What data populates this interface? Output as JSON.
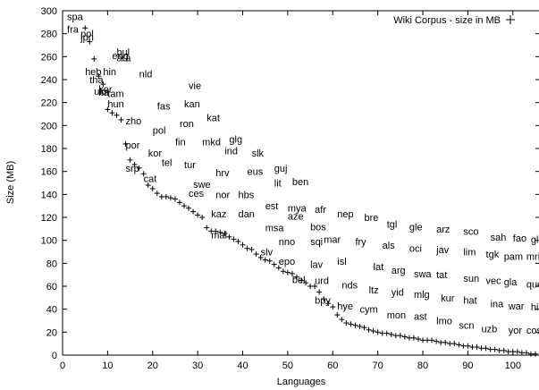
{
  "chart_data": {
    "type": "scatter",
    "xlabel": "Languages",
    "ylabel": "Size (MB)",
    "xlim": [
      0,
      106
    ],
    "ylim": [
      0,
      300
    ],
    "xticks": [
      0,
      10,
      20,
      30,
      40,
      50,
      60,
      70,
      80,
      90,
      100
    ],
    "yticks": [
      0,
      20,
      40,
      60,
      80,
      100,
      120,
      140,
      160,
      180,
      200,
      220,
      240,
      260,
      280,
      300
    ],
    "legend": {
      "label": "Wiki Corpus - size in MB",
      "position": "top-right"
    },
    "series": [
      {
        "name": "Wiki Corpus - size in MB",
        "marker": "plus",
        "x": [
          5,
          6,
          7,
          8,
          9,
          10,
          11,
          12,
          13,
          14,
          15,
          16,
          17,
          18,
          19,
          20,
          21,
          22,
          23,
          24,
          25,
          26,
          27,
          28,
          29,
          30,
          31,
          32,
          33,
          34,
          35,
          36,
          37,
          38,
          39,
          40,
          41,
          42,
          43,
          44,
          45,
          46,
          47,
          48,
          49,
          50,
          51,
          52,
          53,
          54,
          55,
          56,
          57,
          58,
          59,
          60,
          61,
          62,
          63,
          64,
          65,
          66,
          67,
          68,
          69,
          70,
          71,
          72,
          73,
          74,
          75,
          76,
          77,
          78,
          79,
          80,
          81,
          82,
          83,
          84,
          85,
          86,
          87,
          88,
          89,
          90,
          91,
          92,
          93,
          94,
          95,
          96,
          97,
          98,
          99,
          100,
          101,
          102,
          103,
          104,
          105
        ],
        "y": [
          285,
          273,
          258,
          243,
          236,
          214,
          211,
          209,
          205,
          184,
          170,
          166,
          163,
          158,
          148,
          145,
          141,
          138,
          138,
          137,
          136,
          133,
          130,
          128,
          125,
          122,
          120,
          111,
          108,
          108,
          107,
          106,
          103,
          101,
          99,
          96,
          93,
          92,
          88,
          85,
          83,
          82,
          79,
          76,
          73,
          72,
          71,
          68,
          65,
          63,
          60,
          60,
          55,
          49,
          45,
          42,
          35,
          31,
          28,
          27,
          26,
          25,
          24,
          22,
          21,
          20,
          19,
          19,
          18,
          17,
          17,
          16,
          15,
          15,
          14,
          13,
          13,
          13,
          12,
          11,
          11,
          10,
          10,
          9,
          8,
          8,
          7,
          7,
          6,
          6,
          5,
          5,
          4,
          4,
          3,
          3,
          3,
          2,
          2,
          1,
          1
        ]
      }
    ],
    "annotations": [
      {
        "text": "spa",
        "x": 1,
        "y": 295
      },
      {
        "text": "fra",
        "x": 1,
        "y": 284
      },
      {
        "text": "jpn",
        "x": 4,
        "y": 277
      },
      {
        "text": "pol",
        "x": 4,
        "y": 280
      },
      {
        "text": "bul",
        "x": 12,
        "y": 264
      },
      {
        "text": "eng",
        "x": 11,
        "y": 261
      },
      {
        "text": "ara",
        "x": 12,
        "y": 259
      },
      {
        "text": "nld",
        "x": 17,
        "y": 245
      },
      {
        "text": "heb",
        "x": 5,
        "y": 247
      },
      {
        "text": "hin",
        "x": 9,
        "y": 247
      },
      {
        "text": "tha",
        "x": 6,
        "y": 240
      },
      {
        "text": "vie",
        "x": 28,
        "y": 235
      },
      {
        "text": "ukr",
        "x": 7,
        "y": 230
      },
      {
        "text": "kor",
        "x": 8,
        "y": 232
      },
      {
        "text": "ita",
        "x": 8,
        "y": 229
      },
      {
        "text": "tam",
        "x": 10,
        "y": 228
      },
      {
        "text": "hun",
        "x": 10,
        "y": 219
      },
      {
        "text": "fas",
        "x": 21,
        "y": 217
      },
      {
        "text": "kan",
        "x": 27,
        "y": 219
      },
      {
        "text": "kat",
        "x": 32,
        "y": 207
      },
      {
        "text": "zho",
        "x": 14,
        "y": 204
      },
      {
        "text": "ron",
        "x": 26,
        "y": 202
      },
      {
        "text": "pol",
        "x": 20,
        "y": 196
      },
      {
        "text": "fin",
        "x": 25,
        "y": 186
      },
      {
        "text": "mkd",
        "x": 31,
        "y": 186
      },
      {
        "text": "glg",
        "x": 37,
        "y": 188
      },
      {
        "text": "por",
        "x": 14,
        "y": 183
      },
      {
        "text": "kor",
        "x": 19,
        "y": 176
      },
      {
        "text": "ind",
        "x": 36,
        "y": 178
      },
      {
        "text": "slk",
        "x": 42,
        "y": 176
      },
      {
        "text": "tel",
        "x": 22,
        "y": 168
      },
      {
        "text": "tur",
        "x": 27,
        "y": 166
      },
      {
        "text": "srp",
        "x": 14,
        "y": 163
      },
      {
        "text": "guj",
        "x": 47,
        "y": 163
      },
      {
        "text": "hrv",
        "x": 34,
        "y": 159
      },
      {
        "text": "eus",
        "x": 41,
        "y": 160
      },
      {
        "text": "cat",
        "x": 18,
        "y": 154
      },
      {
        "text": "ben",
        "x": 51,
        "y": 151
      },
      {
        "text": "lit",
        "x": 47,
        "y": 150
      },
      {
        "text": "swe",
        "x": 29,
        "y": 149
      },
      {
        "text": "hbs",
        "x": 39,
        "y": 140
      },
      {
        "text": "ces",
        "x": 28,
        "y": 141
      },
      {
        "text": "nor",
        "x": 34,
        "y": 140
      },
      {
        "text": "est",
        "x": 45,
        "y": 130
      },
      {
        "text": "mya",
        "x": 50,
        "y": 128
      },
      {
        "text": "afr",
        "x": 56,
        "y": 127
      },
      {
        "text": "kaz",
        "x": 33,
        "y": 123
      },
      {
        "text": "dan",
        "x": 39,
        "y": 123
      },
      {
        "text": "aze",
        "x": 50,
        "y": 121
      },
      {
        "text": "nep",
        "x": 61,
        "y": 123
      },
      {
        "text": "bre",
        "x": 67,
        "y": 120
      },
      {
        "text": "msa",
        "x": 45,
        "y": 111
      },
      {
        "text": "bos",
        "x": 55,
        "y": 112
      },
      {
        "text": "tgl",
        "x": 72,
        "y": 114
      },
      {
        "text": "gle",
        "x": 77,
        "y": 112
      },
      {
        "text": "arz",
        "x": 83,
        "y": 110
      },
      {
        "text": "sco",
        "x": 89,
        "y": 108
      },
      {
        "text": "mal",
        "x": 33,
        "y": 105
      },
      {
        "text": "mar",
        "x": 58,
        "y": 101
      },
      {
        "text": "sah",
        "x": 95,
        "y": 103
      },
      {
        "text": "fao",
        "x": 100,
        "y": 102
      },
      {
        "text": "glk",
        "x": 104,
        "y": 101
      },
      {
        "text": "nno",
        "x": 48,
        "y": 99
      },
      {
        "text": "sqi",
        "x": 55,
        "y": 99
      },
      {
        "text": "fry",
        "x": 65,
        "y": 99
      },
      {
        "text": "als",
        "x": 71,
        "y": 96
      },
      {
        "text": "oci",
        "x": 77,
        "y": 93
      },
      {
        "text": "jav",
        "x": 83,
        "y": 92
      },
      {
        "text": "lim",
        "x": 89,
        "y": 90
      },
      {
        "text": "slv",
        "x": 44,
        "y": 90
      },
      {
        "text": "tgk",
        "x": 94,
        "y": 88
      },
      {
        "text": "pam",
        "x": 98,
        "y": 86
      },
      {
        "text": "mri",
        "x": 103,
        "y": 86
      },
      {
        "text": "epo",
        "x": 48,
        "y": 82
      },
      {
        "text": "isl",
        "x": 61,
        "y": 82
      },
      {
        "text": "lav",
        "x": 55,
        "y": 79
      },
      {
        "text": "lat",
        "x": 69,
        "y": 77
      },
      {
        "text": "arg",
        "x": 73,
        "y": 74
      },
      {
        "text": "swa",
        "x": 78,
        "y": 71
      },
      {
        "text": "tat",
        "x": 83,
        "y": 70
      },
      {
        "text": "sun",
        "x": 89,
        "y": 67
      },
      {
        "text": "vec",
        "x": 94,
        "y": 65
      },
      {
        "text": "gla",
        "x": 98,
        "y": 64
      },
      {
        "text": "que",
        "x": 103,
        "y": 62
      },
      {
        "text": "bel",
        "x": 51,
        "y": 66
      },
      {
        "text": "urd",
        "x": 56,
        "y": 65
      },
      {
        "text": "nds",
        "x": 62,
        "y": 61
      },
      {
        "text": "ltz",
        "x": 68,
        "y": 57
      },
      {
        "text": "yid",
        "x": 73,
        "y": 55
      },
      {
        "text": "mlg",
        "x": 78,
        "y": 53
      },
      {
        "text": "kur",
        "x": 84,
        "y": 50
      },
      {
        "text": "hat",
        "x": 89,
        "y": 48
      },
      {
        "text": "ina",
        "x": 95,
        "y": 45
      },
      {
        "text": "war",
        "x": 99,
        "y": 43
      },
      {
        "text": "hil",
        "x": 104,
        "y": 42
      },
      {
        "text": "bpy",
        "x": 56,
        "y": 48
      },
      {
        "text": "hye",
        "x": 61,
        "y": 43
      },
      {
        "text": "cym",
        "x": 66,
        "y": 40
      },
      {
        "text": "mon",
        "x": 72,
        "y": 35
      },
      {
        "text": "ast",
        "x": 78,
        "y": 34
      },
      {
        "text": "lmo",
        "x": 83,
        "y": 30
      },
      {
        "text": "scn",
        "x": 88,
        "y": 26
      },
      {
        "text": "uzb",
        "x": 93,
        "y": 23
      },
      {
        "text": "yor",
        "x": 99,
        "y": 22
      },
      {
        "text": "cos",
        "x": 103,
        "y": 22
      }
    ]
  }
}
